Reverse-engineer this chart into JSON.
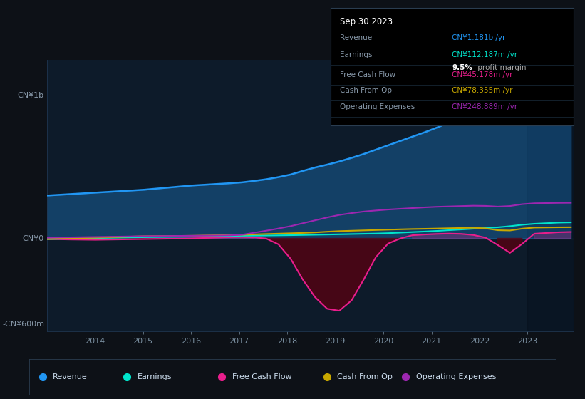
{
  "bg_color": "#0d1117",
  "plot_bg_color": "#0d1b2a",
  "ylabel_top": "CN¥1b",
  "ylabel_bottom": "-CN¥600m",
  "ylabel_zero": "CN¥0",
  "y_min": -600,
  "y_max": 1200,
  "colors": {
    "revenue": "#2196f3",
    "earnings": "#00e5cc",
    "free_cash_flow": "#e91e8c",
    "cash_from_op": "#c8a800",
    "operating_expenses": "#9c27b0"
  },
  "legend_items": [
    {
      "label": "Revenue",
      "color": "#2196f3"
    },
    {
      "label": "Earnings",
      "color": "#00e5cc"
    },
    {
      "label": "Free Cash Flow",
      "color": "#e91e8c"
    },
    {
      "label": "Cash From Op",
      "color": "#c8a800"
    },
    {
      "label": "Operating Expenses",
      "color": "#9c27b0"
    }
  ],
  "info_box_title": "Sep 30 2023",
  "info_box_rows": [
    {
      "label": "Revenue",
      "value": "CN¥1.181b /yr",
      "color": "#2196f3"
    },
    {
      "label": "Earnings",
      "value": "CN¥112.187m /yr",
      "color": "#00e5cc"
    },
    {
      "label": "",
      "value": "9.5%",
      "value2": " profit margin",
      "color": "#ffffff",
      "color2": "#aaaaaa"
    },
    {
      "label": "Free Cash Flow",
      "value": "CN¥45.178m /yr",
      "color": "#e91e8c"
    },
    {
      "label": "Cash From Op",
      "value": "CN¥78.355m /yr",
      "color": "#c8a800"
    },
    {
      "label": "Operating Expenses",
      "value": "CN¥248.889m /yr",
      "color": "#9c27b0"
    }
  ]
}
